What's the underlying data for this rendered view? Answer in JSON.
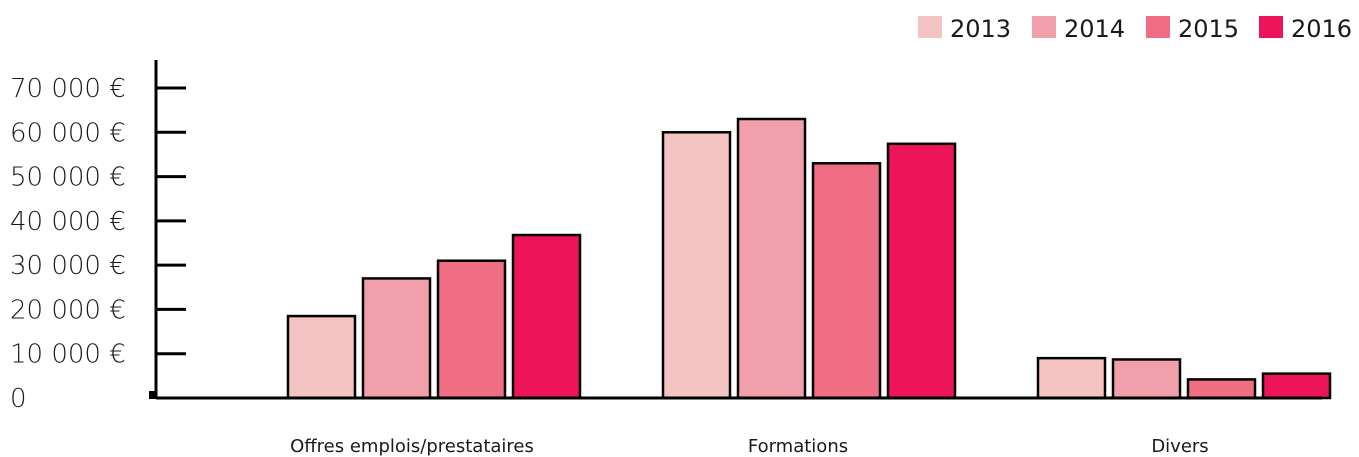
{
  "chart_data": {
    "type": "bar",
    "title": "",
    "xlabel": "",
    "ylabel": "",
    "categories": [
      "Offres emplois/prestataires",
      "Formations",
      "Divers"
    ],
    "series": [
      {
        "name": "2013",
        "color": "#f4c4c2",
        "values": [
          18500,
          60000,
          9000
        ]
      },
      {
        "name": "2014",
        "color": "#f29fac",
        "values": [
          27000,
          63000,
          8700
        ]
      },
      {
        "name": "2015",
        "color": "#f06e84",
        "values": [
          31000,
          53000,
          4200
        ]
      },
      {
        "name": "2016",
        "color": "#ee1459",
        "values": [
          36800,
          57400,
          5500
        ]
      }
    ],
    "ylim": [
      0,
      70000
    ],
    "yticks": [
      {
        "value": 0,
        "label": "0"
      },
      {
        "value": 10000,
        "label": "10 000 €"
      },
      {
        "value": 20000,
        "label": "20 000 €"
      },
      {
        "value": 30000,
        "label": "30 000 €"
      },
      {
        "value": 40000,
        "label": "40 000 €"
      },
      {
        "value": 50000,
        "label": "50 000 €"
      },
      {
        "value": 60000,
        "label": "60 000 €"
      },
      {
        "value": 70000,
        "label": "70 000 €"
      }
    ],
    "grid": false,
    "legend_position": "top-right"
  }
}
